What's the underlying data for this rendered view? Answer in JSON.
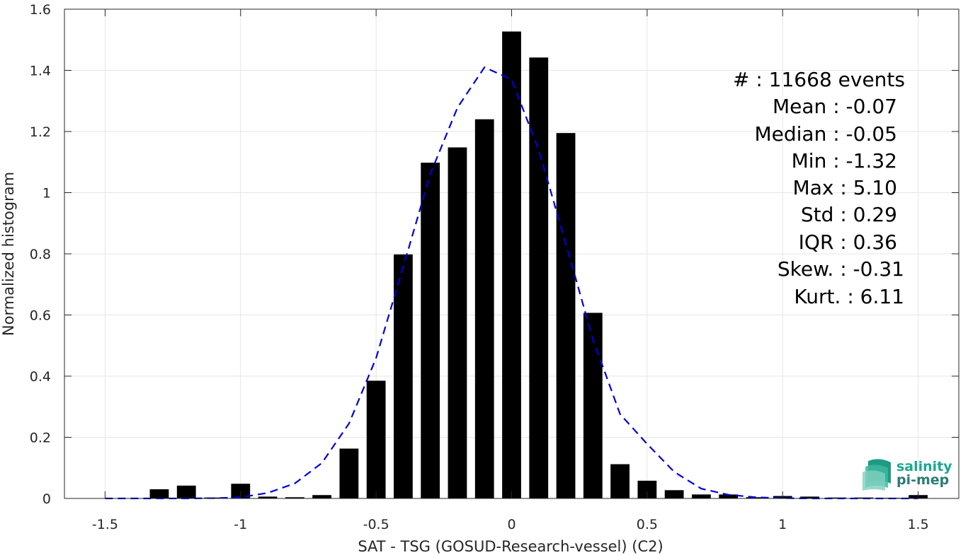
{
  "chart_data": {
    "type": "bar",
    "xlabel": "SAT - TSG (GOSUD-Research-vessel) (C2)",
    "ylabel": "Normalized histogram",
    "xlim": [
      -1.65,
      1.65
    ],
    "ylim": [
      0,
      1.6
    ],
    "grid": true,
    "xticks": [
      -1.5,
      -1,
      -0.5,
      0,
      0.5,
      1,
      1.5
    ],
    "xtick_labels": [
      "-1.5",
      "-1",
      "-0.5",
      "0",
      "0.5",
      "1",
      "1.5"
    ],
    "yticks": [
      0,
      0.2,
      0.4,
      0.6,
      0.8,
      1,
      1.2,
      1.4,
      1.6
    ],
    "ytick_labels": [
      "0",
      "0.2",
      "0.4",
      "0.6",
      "0.8",
      "1",
      "1.2",
      "1.4",
      "1.6"
    ],
    "bin_width": 0.1,
    "bar_width": 0.07,
    "bar_color": "#000000",
    "bars": [
      {
        "x": -1.5,
        "y": 0.0
      },
      {
        "x": -1.4,
        "y": 0.0
      },
      {
        "x": -1.3,
        "y": 0.03
      },
      {
        "x": -1.2,
        "y": 0.042
      },
      {
        "x": -1.1,
        "y": 0.003
      },
      {
        "x": -1.0,
        "y": 0.048
      },
      {
        "x": -0.9,
        "y": 0.006
      },
      {
        "x": -0.8,
        "y": 0.004
      },
      {
        "x": -0.7,
        "y": 0.011
      },
      {
        "x": -0.6,
        "y": 0.163
      },
      {
        "x": -0.5,
        "y": 0.385
      },
      {
        "x": -0.4,
        "y": 0.798
      },
      {
        "x": -0.3,
        "y": 1.098
      },
      {
        "x": -0.2,
        "y": 1.148
      },
      {
        "x": -0.1,
        "y": 1.24
      },
      {
        "x": 0.0,
        "y": 1.527
      },
      {
        "x": 0.1,
        "y": 1.442
      },
      {
        "x": 0.2,
        "y": 1.195
      },
      {
        "x": 0.3,
        "y": 0.607
      },
      {
        "x": 0.4,
        "y": 0.112
      },
      {
        "x": 0.5,
        "y": 0.058
      },
      {
        "x": 0.6,
        "y": 0.027
      },
      {
        "x": 0.7,
        "y": 0.013
      },
      {
        "x": 0.8,
        "y": 0.013
      },
      {
        "x": 0.9,
        "y": 0.004
      },
      {
        "x": 1.0,
        "y": 0.008
      },
      {
        "x": 1.1,
        "y": 0.006
      },
      {
        "x": 1.2,
        "y": 0.003
      },
      {
        "x": 1.3,
        "y": 0.003
      },
      {
        "x": 1.4,
        "y": 0.002
      },
      {
        "x": 1.5,
        "y": 0.011
      }
    ],
    "fit_curve": {
      "style": "dashed",
      "color": "#0000dd",
      "x": [
        -1.5,
        -1.4,
        -1.3,
        -1.2,
        -1.1,
        -1.0,
        -0.9,
        -0.8,
        -0.7,
        -0.6,
        -0.5,
        -0.4,
        -0.3,
        -0.2,
        -0.1,
        0.0,
        0.1,
        0.2,
        0.3,
        0.4,
        0.5,
        0.6,
        0.7,
        0.8,
        0.9,
        1.0,
        1.1,
        1.2,
        1.3,
        1.4,
        1.5
      ],
      "y": [
        0.0,
        0.0,
        0.0,
        0.0,
        0.001,
        0.004,
        0.018,
        0.049,
        0.116,
        0.245,
        0.459,
        0.757,
        1.061,
        1.278,
        1.41,
        1.37,
        1.14,
        0.834,
        0.521,
        0.276,
        0.178,
        0.087,
        0.032,
        0.012,
        0.004,
        0.001,
        0.0,
        0.0,
        0.0,
        0.0,
        0.0
      ]
    }
  },
  "stats": [
    {
      "text": "#  : 11668 events",
      "align": "end-wide"
    },
    {
      "text": "Mean : -0.07",
      "align": "end"
    },
    {
      "text": "Median : -0.05",
      "align": "end"
    },
    {
      "text": "Min : -1.32",
      "align": "end"
    },
    {
      "text": "Max : 5.10",
      "align": "end"
    },
    {
      "text": "Std : 0.29",
      "align": "end"
    },
    {
      "text": "IQR : 0.36",
      "align": "end"
    },
    {
      "text": "Skew. : -0.31",
      "align": "end-wide"
    },
    {
      "text": "Kurt. : 6.11",
      "align": "end-wide"
    }
  ],
  "logo": {
    "line1": "salinity",
    "line2": "pi-mep",
    "color1": "#1aa98f",
    "color2": "#2b7c74"
  },
  "colors": {
    "grid": "#e6e6e6",
    "axis": "#262626"
  }
}
